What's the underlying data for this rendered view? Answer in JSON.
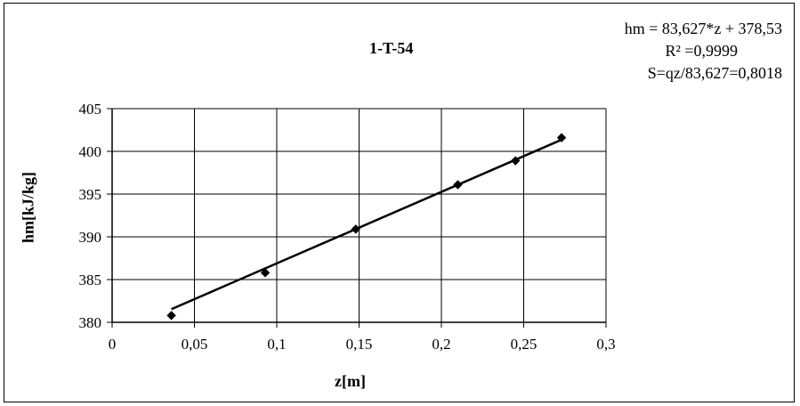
{
  "chart_data": {
    "type": "scatter",
    "title": "1-T-54",
    "xlabel": "z[m]",
    "ylabel": "hm[kJ/kg]",
    "xlim": [
      0,
      0.3
    ],
    "ylim": [
      380,
      405
    ],
    "xticks": [
      0,
      0.05,
      0.1,
      0.15,
      0.2,
      0.25,
      0.3
    ],
    "yticks": [
      380,
      385,
      390,
      395,
      400,
      405
    ],
    "xtick_labels": [
      "0",
      "0,05",
      "0,1",
      "0,15",
      "0,2",
      "0,25",
      "0,3"
    ],
    "ytick_labels": [
      "380",
      "385",
      "390",
      "395",
      "400",
      "405"
    ],
    "grid": true,
    "legend": "none",
    "series": [
      {
        "marker": "diamond",
        "color": "#000000",
        "x": [
          0.036,
          0.093,
          0.148,
          0.21,
          0.245,
          0.273
        ],
        "y": [
          380.8,
          385.8,
          390.9,
          396.1,
          398.9,
          401.6
        ]
      }
    ],
    "trendline": {
      "slope": 83.627,
      "intercept": 378.53,
      "x_range": [
        0.036,
        0.273
      ]
    },
    "annotations": [
      "hm = 83,627*z + 378,53",
      "R² =0,9999",
      "S=qz/83,627=0,8018"
    ]
  }
}
